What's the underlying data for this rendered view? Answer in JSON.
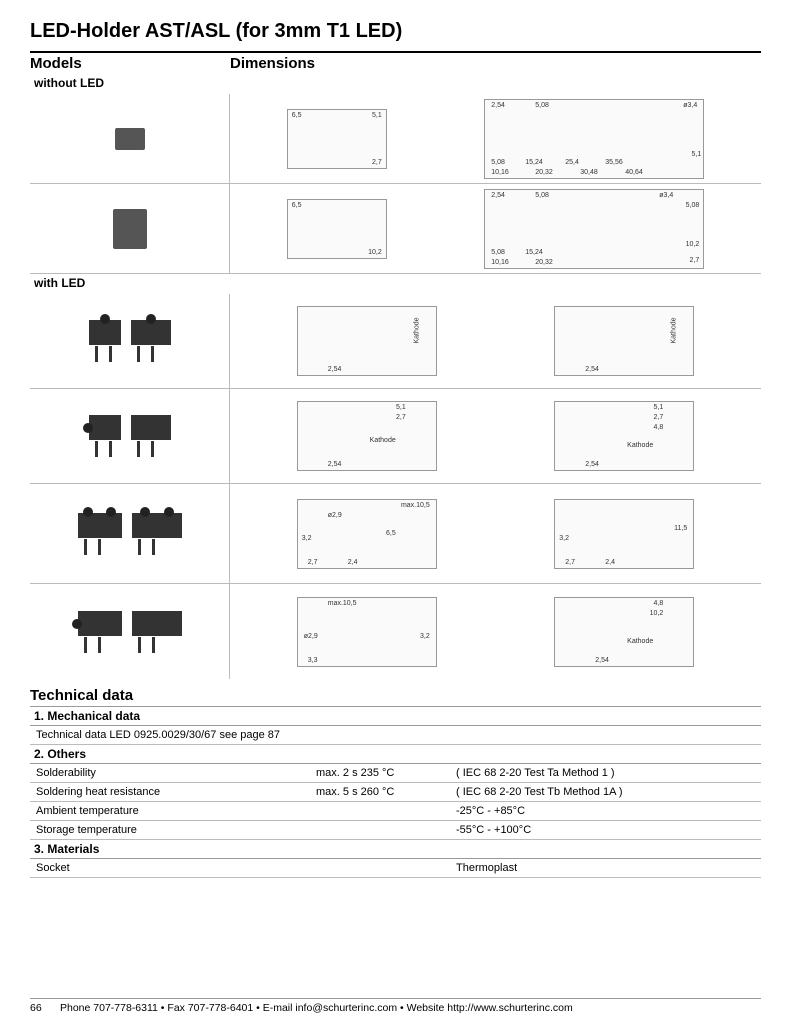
{
  "title": "LED-Holder AST/ASL (for 3mm T1 LED)",
  "headers": {
    "models": "Models",
    "dimensions": "Dimensions"
  },
  "groups": {
    "without": "without LED",
    "with": "with LED"
  },
  "dimension_labels": {
    "kathode": "Kathode",
    "d254": "2,54",
    "d508": "5,08",
    "d27": "2,7",
    "d51": "5,1",
    "d65": "6,5",
    "d34": "ø3,4",
    "d29": "ø2,9",
    "d1016": "10,16",
    "d1524": "15,24",
    "d2032": "20,32",
    "d254b": "25,4",
    "d3048": "30,48",
    "d3556": "35,56",
    "d4064": "40,64",
    "d102": "10,2",
    "d48": "4,8",
    "d32": "3,2",
    "d24": "2,4",
    "d115": "11,5",
    "d33": "3,3",
    "max105": "max.10,5"
  },
  "technical": {
    "title": "Technical data",
    "sections": [
      {
        "heading": "1. Mechanical data",
        "rows": [
          {
            "k": "Technical data LED 0925.0029/30/67 see page 87",
            "v1": "",
            "v2": ""
          }
        ]
      },
      {
        "heading": "2. Others",
        "rows": [
          {
            "k": "Solderability",
            "v1": "max. 2 s  235 °C",
            "v2": "( IEC 68 2-20 Test Ta Method 1 )"
          },
          {
            "k": "Soldering heat resistance",
            "v1": "max. 5 s  260 °C",
            "v2": "( IEC 68 2-20 Test Tb Method 1A )"
          },
          {
            "k": "Ambient temperature",
            "v1": "",
            "v2": "-25°C - +85°C"
          },
          {
            "k": "Storage temperature",
            "v1": "",
            "v2": "-55°C - +100°C"
          }
        ]
      },
      {
        "heading": "3. Materials",
        "rows": [
          {
            "k": "Socket",
            "v1": "",
            "v2": "Thermoplast"
          }
        ]
      }
    ]
  },
  "footer": {
    "page": "66",
    "text": "Phone 707-778-6311 • Fax 707-778-6401 • E-mail info@schurterinc.com • Website http://www.schurterinc.com"
  },
  "colors": {
    "text": "#000000",
    "rule": "#999999",
    "component": "#555555"
  }
}
